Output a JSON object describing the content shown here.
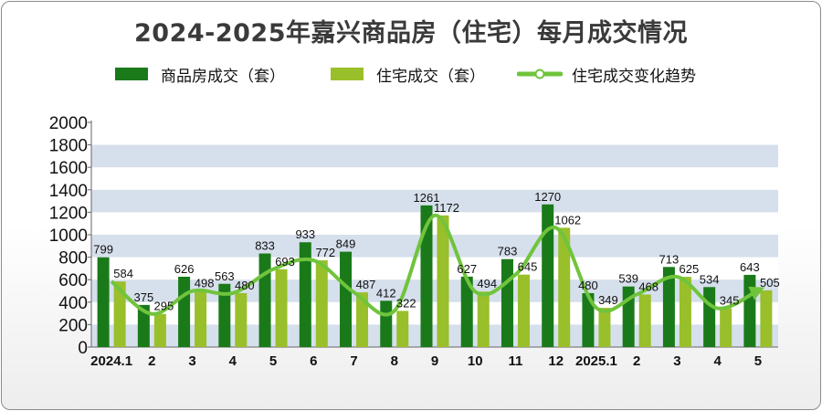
{
  "title": "2024-2025年嘉兴商品房（住宅）每月成交情况",
  "legend": {
    "commercial": "商品房成交（套）",
    "residential": "住宅成交（套）",
    "trend": "住宅成交变化趋势"
  },
  "colors": {
    "commercial": "#1a7a1a",
    "residential": "#99bf2a",
    "trend": "#70c43c",
    "band": "#d6dfec"
  },
  "chart_data": {
    "type": "bar",
    "title": "2024-2025年嘉兴商品房（住宅）每月成交情况",
    "categories": [
      "2024.1",
      "2",
      "3",
      "4",
      "5",
      "6",
      "7",
      "8",
      "9",
      "10",
      "11",
      "12",
      "2025.1",
      "2",
      "3",
      "4",
      "5"
    ],
    "series": [
      {
        "name": "商品房成交（套）",
        "values": [
          799,
          375,
          626,
          563,
          833,
          933,
          849,
          412,
          1261,
          627,
          783,
          1270,
          480,
          539,
          713,
          534,
          643
        ]
      },
      {
        "name": "住宅成交（套）",
        "values": [
          584,
          295,
          498,
          480,
          693,
          772,
          487,
          322,
          1172,
          494,
          645,
          1062,
          349,
          468,
          625,
          345,
          505
        ]
      }
    ],
    "trend": {
      "name": "住宅成交变化趋势",
      "type": "line"
    },
    "yticks": [
      "0",
      "200",
      "400",
      "600",
      "800",
      "1000",
      "1200",
      "1400",
      "1600",
      "1800",
      "2000"
    ],
    "ylim": [
      0,
      2000
    ],
    "legend": "top"
  }
}
